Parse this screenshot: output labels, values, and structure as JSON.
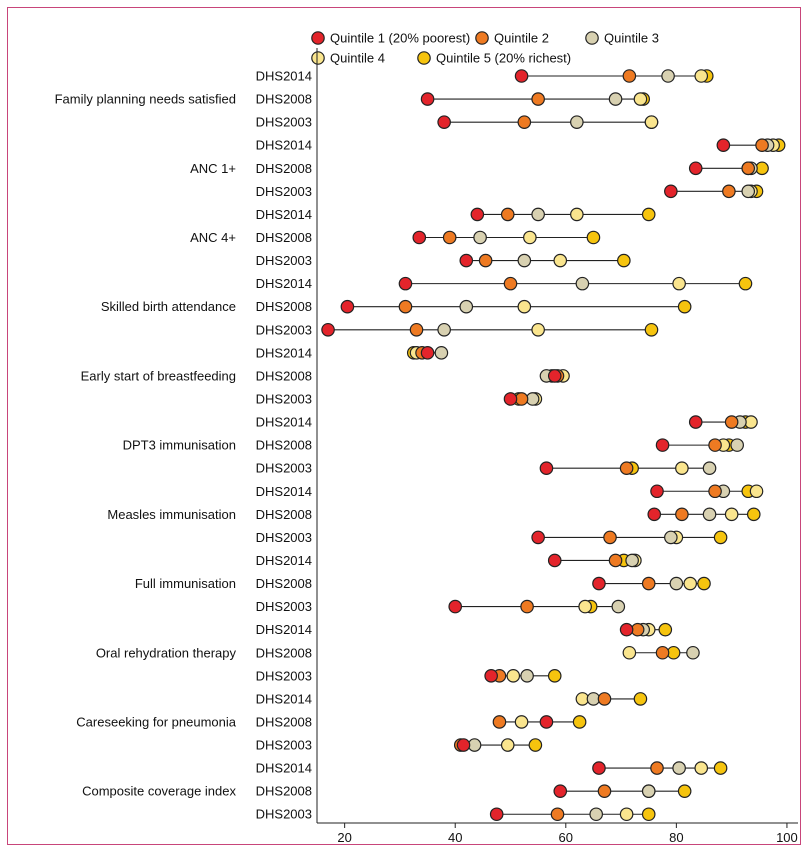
{
  "chart_data": {
    "type": "dot-range",
    "xlim": [
      15,
      102
    ],
    "xticks": [
      20,
      40,
      60,
      80,
      100
    ],
    "grid": false,
    "legend_position": "top",
    "series": [
      {
        "name": "Quintile 1 (20% poorest)",
        "color": "#e3242b"
      },
      {
        "name": "Quintile 2",
        "color": "#ee7a22"
      },
      {
        "name": "Quintile 3",
        "color": "#d8d1b1"
      },
      {
        "name": "Quintile 4",
        "color": "#fae58e"
      },
      {
        "name": "Quintile 5 (20% richest)",
        "color": "#f6c40e"
      }
    ],
    "groups": [
      {
        "label": "Family planning needs satisfied",
        "rows": [
          {
            "survey": "DHS2014",
            "values": [
              52,
              71.5,
              78.5,
              84.5,
              85.5
            ]
          },
          {
            "survey": "DHS2008",
            "values": [
              35,
              55,
              69,
              73.5,
              74
            ]
          },
          {
            "survey": "DHS2003",
            "values": [
              38,
              52.5,
              62,
              75.5,
              75.5
            ]
          }
        ]
      },
      {
        "label": "ANC 1+",
        "rows": [
          {
            "survey": "DHS2014",
            "values": [
              88.5,
              95.5,
              96.5,
              97.5,
              98.5
            ]
          },
          {
            "survey": "DHS2008",
            "values": [
              83.5,
              93,
              93.5,
              93,
              95.5
            ]
          },
          {
            "survey": "DHS2003",
            "values": [
              79,
              89.5,
              93,
              93.5,
              94.5
            ]
          }
        ]
      },
      {
        "label": "ANC 4+",
        "rows": [
          {
            "survey": "DHS2014",
            "values": [
              44,
              49.5,
              55,
              62,
              75
            ]
          },
          {
            "survey": "DHS2008",
            "values": [
              33.5,
              39,
              44.5,
              53.5,
              65
            ]
          },
          {
            "survey": "DHS2003",
            "values": [
              42,
              45.5,
              52.5,
              59,
              70.5
            ]
          }
        ]
      },
      {
        "label": "Skilled birth attendance",
        "rows": [
          {
            "survey": "DHS2014",
            "values": [
              31,
              50,
              63,
              80.5,
              92.5
            ]
          },
          {
            "survey": "DHS2008",
            "values": [
              20.5,
              31,
              42,
              52.5,
              81.5
            ]
          },
          {
            "survey": "DHS2003",
            "values": [
              17,
              33,
              38,
              55,
              75.5
            ]
          }
        ]
      },
      {
        "label": "Early start of breastfeeding",
        "rows": [
          {
            "survey": "DHS2014",
            "values": [
              35,
              34,
              37.5,
              33,
              32.5
            ]
          },
          {
            "survey": "DHS2008",
            "values": [
              58,
              58.5,
              56.5,
              59.5,
              57.5
            ]
          },
          {
            "survey": "DHS2003",
            "values": [
              50,
              52,
              54,
              54.5,
              51.5
            ]
          }
        ]
      },
      {
        "label": "DPT3 immunisation",
        "rows": [
          {
            "survey": "DHS2014",
            "values": [
              83.5,
              90,
              91.5,
              93.5,
              92.5
            ]
          },
          {
            "survey": "DHS2008",
            "values": [
              77.5,
              87,
              91,
              88.5,
              89.5
            ]
          },
          {
            "survey": "DHS2003",
            "values": [
              56.5,
              71,
              86,
              81,
              72
            ]
          }
        ]
      },
      {
        "label": "Measles immunisation",
        "rows": [
          {
            "survey": "DHS2014",
            "values": [
              76.5,
              87,
              88.5,
              94.5,
              93
            ]
          },
          {
            "survey": "DHS2008",
            "values": [
              76,
              81,
              86,
              90,
              94
            ]
          },
          {
            "survey": "DHS2003",
            "values": [
              55,
              68,
              79,
              80,
              88
            ]
          }
        ]
      },
      {
        "label": "Full immunisation",
        "rows": [
          {
            "survey": "DHS2014",
            "values": [
              58,
              69,
              72,
              72.5,
              70.5
            ]
          },
          {
            "survey": "DHS2008",
            "values": [
              66,
              75,
              80,
              82.5,
              85
            ]
          },
          {
            "survey": "DHS2003",
            "values": [
              40,
              53,
              69.5,
              63.5,
              64.5
            ]
          }
        ]
      },
      {
        "label": "Oral rehydration therapy",
        "rows": [
          {
            "survey": "DHS2014",
            "values": [
              71,
              73,
              74,
              75,
              78
            ]
          },
          {
            "survey": "DHS2008",
            "values": [
              null,
              77.5,
              83,
              71.5,
              79.5
            ]
          },
          {
            "survey": "DHS2003",
            "values": [
              46.5,
              48,
              53,
              50.5,
              58
            ]
          }
        ]
      },
      {
        "label": "Careseeking for pneumonia",
        "rows": [
          {
            "survey": "DHS2014",
            "values": [
              null,
              67,
              65,
              63,
              73.5
            ]
          },
          {
            "survey": "DHS2008",
            "values": [
              56.5,
              48,
              null,
              52,
              62.5
            ]
          },
          {
            "survey": "DHS2003",
            "values": [
              41.5,
              41,
              43.5,
              49.5,
              54.5
            ]
          }
        ]
      },
      {
        "label": "Composite coverage index",
        "rows": [
          {
            "survey": "DHS2014",
            "values": [
              66,
              76.5,
              80.5,
              84.5,
              88
            ]
          },
          {
            "survey": "DHS2008",
            "values": [
              59,
              67,
              75,
              75,
              81.5
            ]
          },
          {
            "survey": "DHS2003",
            "values": [
              47.5,
              58.5,
              65.5,
              71,
              75
            ]
          }
        ]
      }
    ]
  }
}
